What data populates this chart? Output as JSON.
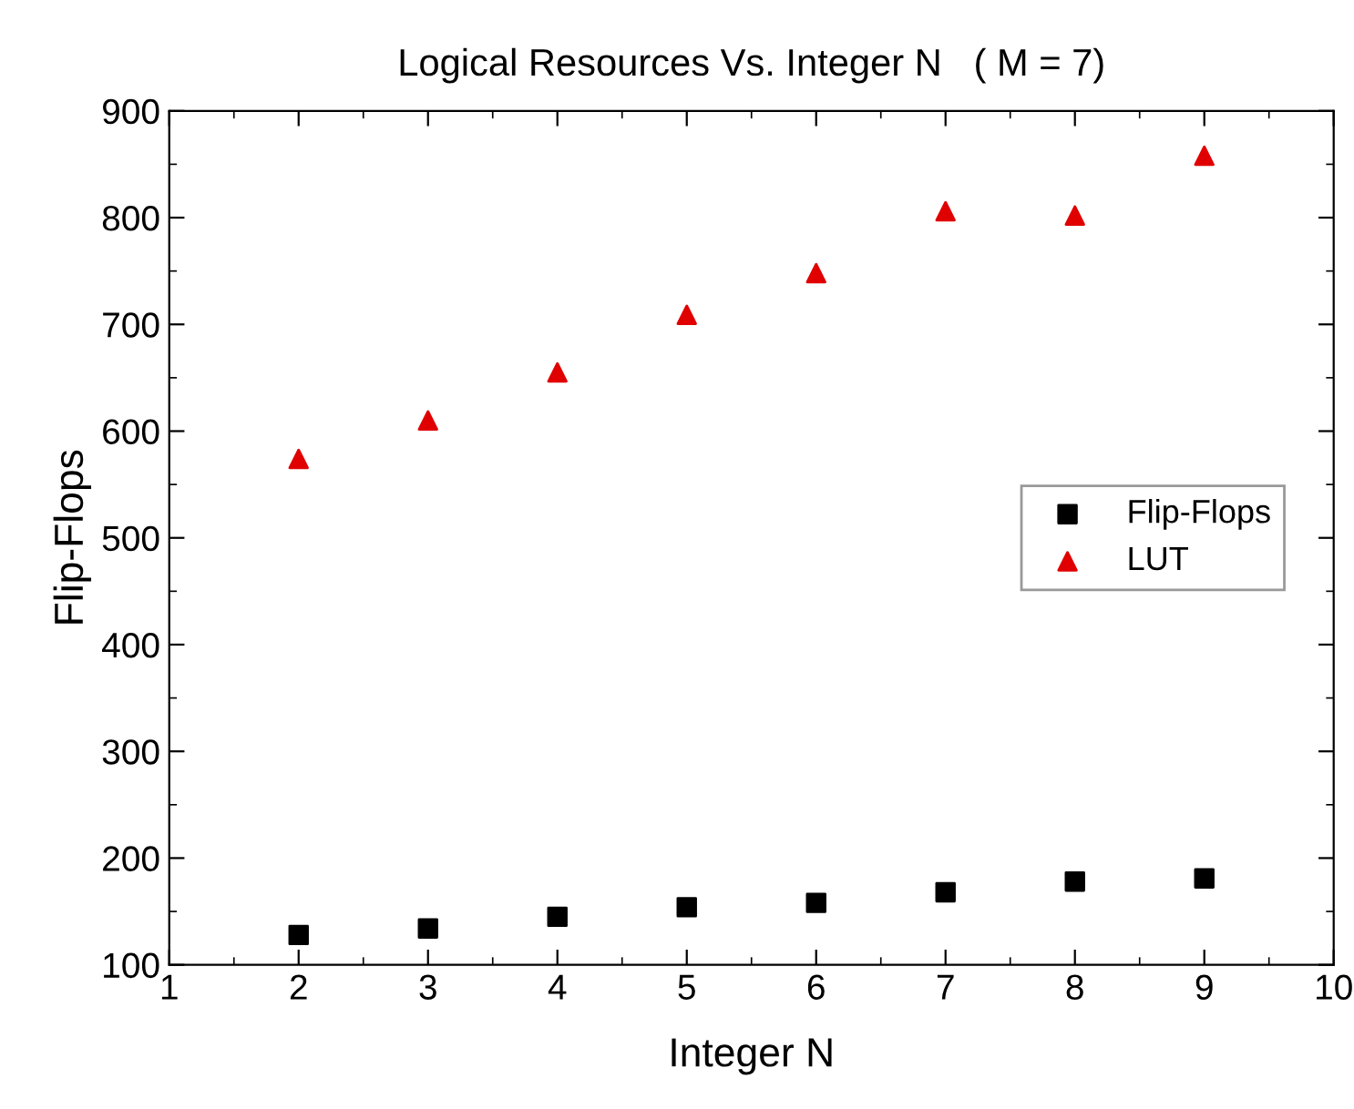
{
  "chart_data": {
    "type": "scatter",
    "title": "Logical Resources Vs. Integer N   ( M = 7)",
    "xlabel": "Integer N",
    "ylabel": "Flip-Flops",
    "x": [
      2,
      3,
      4,
      5,
      6,
      7,
      8,
      9
    ],
    "series": [
      {
        "name": "Flip-Flops",
        "color": "#000000",
        "marker": "square",
        "values": [
          128,
          134,
          145,
          154,
          158,
          168,
          178,
          181
        ]
      },
      {
        "name": "LUT",
        "color": "#e00000",
        "marker": "triangle",
        "values": [
          574,
          610,
          655,
          709,
          748,
          806,
          802,
          858
        ]
      }
    ],
    "xlim": [
      1,
      10
    ],
    "xticks": [
      1,
      2,
      3,
      4,
      5,
      6,
      7,
      8,
      9,
      10
    ],
    "ylim": [
      100,
      900
    ],
    "yticks": [
      100,
      200,
      300,
      400,
      500,
      600,
      700,
      800,
      900
    ],
    "grid": false,
    "legend": "right"
  }
}
